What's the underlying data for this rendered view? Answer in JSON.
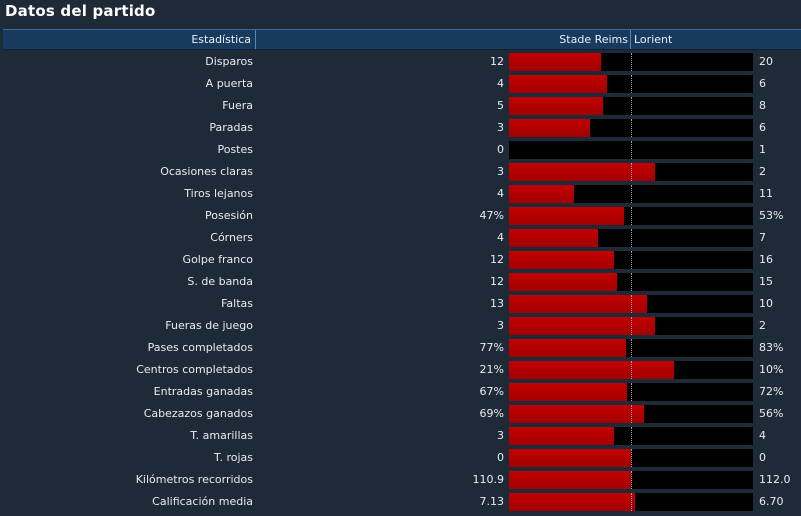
{
  "title": "Datos del partido",
  "header": {
    "stat_label": "Estadística",
    "home_team": "Stade Reims",
    "away_team": "Lorient"
  },
  "colors": {
    "home_bar": "#b00000",
    "away_bar": "#000000",
    "header": "#173a5e"
  },
  "stats": [
    {
      "label": "Disparos",
      "home": "12",
      "away": "20",
      "home_share": 0.375
    },
    {
      "label": "A puerta",
      "home": "4",
      "away": "6",
      "home_share": 0.4
    },
    {
      "label": "Fuera",
      "home": "5",
      "away": "8",
      "home_share": 0.385
    },
    {
      "label": "Paradas",
      "home": "3",
      "away": "6",
      "home_share": 0.333
    },
    {
      "label": "Postes",
      "home": "0",
      "away": "1",
      "home_share": 0.0
    },
    {
      "label": "Ocasiones claras",
      "home": "3",
      "away": "2",
      "home_share": 0.6
    },
    {
      "label": "Tiros lejanos",
      "home": "4",
      "away": "11",
      "home_share": 0.267
    },
    {
      "label": "Posesión",
      "home": "47%",
      "away": "53%",
      "home_share": 0.47
    },
    {
      "label": "Córners",
      "home": "4",
      "away": "7",
      "home_share": 0.364
    },
    {
      "label": "Golpe franco",
      "home": "12",
      "away": "16",
      "home_share": 0.429
    },
    {
      "label": "S. de banda",
      "home": "12",
      "away": "15",
      "home_share": 0.444
    },
    {
      "label": "Faltas",
      "home": "13",
      "away": "10",
      "home_share": 0.565
    },
    {
      "label": "Fueras de juego",
      "home": "3",
      "away": "2",
      "home_share": 0.6
    },
    {
      "label": "Pases completados",
      "home": "77%",
      "away": "83%",
      "home_share": 0.481
    },
    {
      "label": "Centros completados",
      "home": "21%",
      "away": "10%",
      "home_share": 0.677
    },
    {
      "label": "Entradas ganadas",
      "home": "67%",
      "away": "72%",
      "home_share": 0.482
    },
    {
      "label": "Cabezazos ganados",
      "home": "69%",
      "away": "56%",
      "home_share": 0.552
    },
    {
      "label": "T. amarillas",
      "home": "3",
      "away": "4",
      "home_share": 0.429
    },
    {
      "label": "T. rojas",
      "home": "0",
      "away": "0",
      "home_share": 0.5
    },
    {
      "label": "Kilómetros recorridos",
      "home": "110.9",
      "away": "112.0",
      "home_share": 0.498
    },
    {
      "label": "Calificación media",
      "home": "7.13",
      "away": "6.70",
      "home_share": 0.515
    }
  ]
}
